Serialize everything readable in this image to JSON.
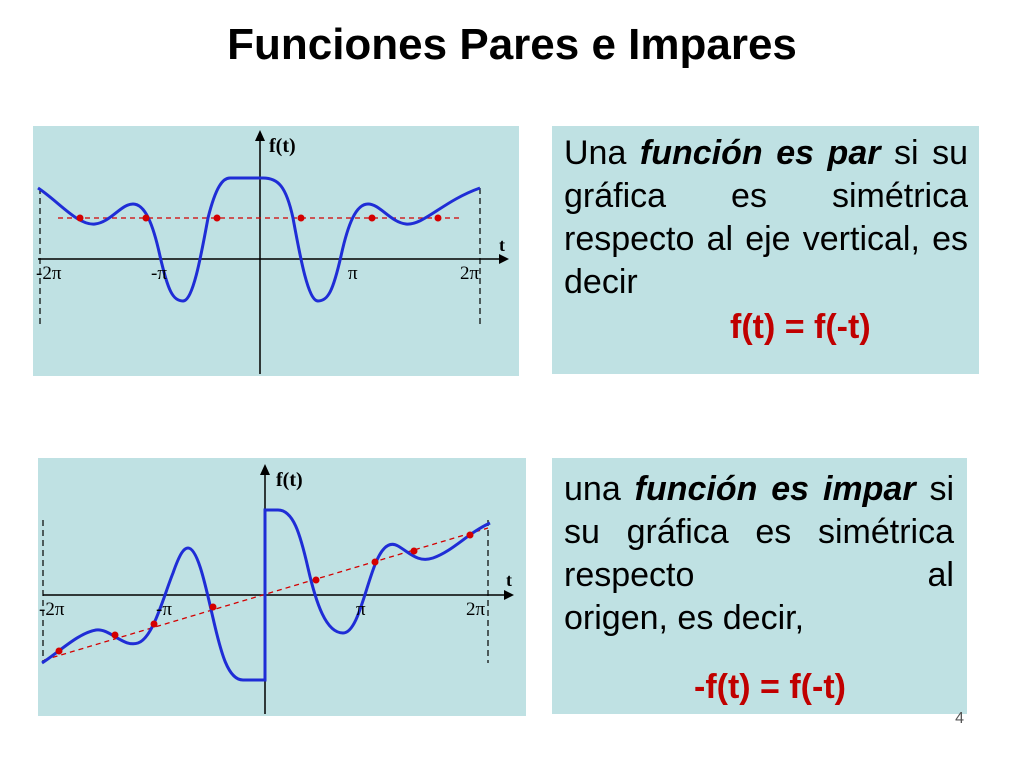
{
  "slide": {
    "title": "Funciones Pares e Impares",
    "page_number": "4"
  },
  "colors": {
    "panel_bg": "#bfe1e3",
    "curve": "#1f2dd6",
    "accent": "#d40000",
    "formula": "#c00000"
  },
  "even_graph": {
    "ylabel": "f(t)",
    "xlabel": "t",
    "ticks": [
      "-2π",
      "-π",
      "π",
      "2π"
    ]
  },
  "odd_graph": {
    "ylabel": "f(t)",
    "xlabel": "t",
    "ticks": [
      "-2π",
      "-π",
      "π",
      "2π"
    ]
  },
  "even_text": {
    "part1": "Una ",
    "emphasis": "función es par",
    "part2": " si su gráfica es simétrica respecto al eje vertical, es decir",
    "formula": "f(t) = f(-t)"
  },
  "odd_text": {
    "part1": "una ",
    "emphasis": "función es impar",
    "part2": " si su gráfica es simétrica respecto al ",
    "part3": "origen, es decir,",
    "formula": "-f(t) = f(-t)"
  }
}
